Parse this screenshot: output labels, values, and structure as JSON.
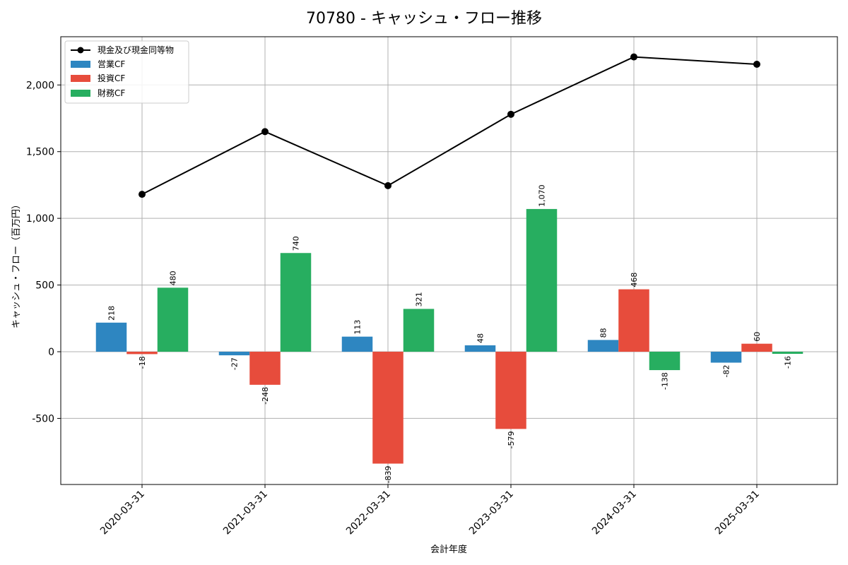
{
  "chart_data": {
    "type": "bar",
    "title": "70780 - キャッシュ・フロー推移",
    "xlabel": "会計年度",
    "ylabel": "キャッシュ・フロー（百万円）",
    "categories": [
      "2020-03-31",
      "2021-03-31",
      "2022-03-31",
      "2023-03-31",
      "2024-03-31",
      "2025-03-31"
    ],
    "ylim": [
      -1000,
      2300
    ],
    "yticks": [
      -500,
      0,
      500,
      1000,
      1500,
      2000
    ],
    "ytick_labels": [
      "-500",
      "0",
      "500",
      "1,000",
      "1,500",
      "2,000"
    ],
    "grid": true,
    "legend_position": "top-left",
    "series": [
      {
        "name": "営業CF",
        "kind": "bar",
        "color": "#2e86c1",
        "values": [
          218,
          -27,
          113,
          48,
          88,
          -82
        ],
        "labels": [
          "218",
          "-27",
          "113",
          "48",
          "88",
          "-82"
        ]
      },
      {
        "name": "投資CF",
        "kind": "bar",
        "color": "#e74c3c",
        "values": [
          -18,
          -248,
          -839,
          -579,
          468,
          60
        ],
        "labels": [
          "-18",
          "-248",
          "-839",
          "-579",
          "468",
          "60"
        ]
      },
      {
        "name": "財務CF",
        "kind": "bar",
        "color": "#27ae60",
        "values": [
          480,
          740,
          321,
          1070,
          -138,
          -16
        ],
        "labels": [
          "480",
          "740",
          "321",
          "1,070",
          "-138",
          "-16"
        ]
      },
      {
        "name": "現金及び現金同等物",
        "kind": "line",
        "color": "#000000",
        "values": [
          1180,
          1650,
          1245,
          1780,
          2210,
          2155
        ]
      }
    ]
  }
}
